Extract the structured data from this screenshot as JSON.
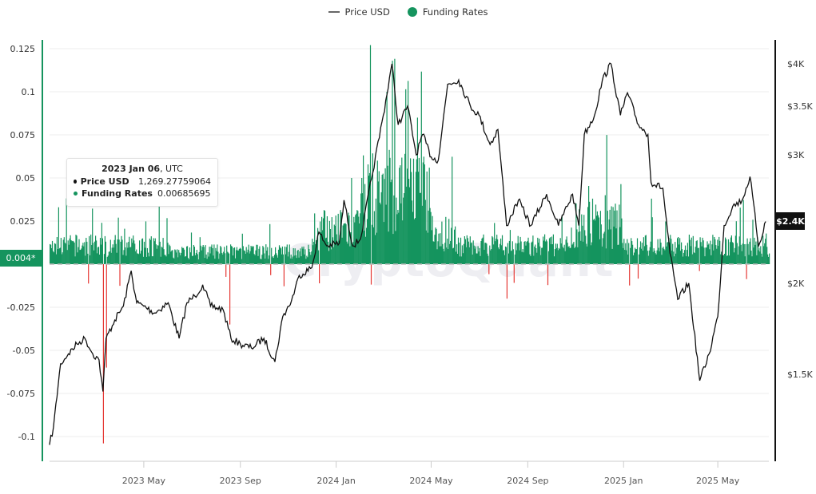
{
  "legend": {
    "items": [
      {
        "label": "Price USD",
        "type": "line",
        "color": "#666666"
      },
      {
        "label": "Funding Rates",
        "type": "dot",
        "color": "#15945e"
      }
    ]
  },
  "watermark": "CryptoQuant",
  "tooltip": {
    "date_bold": "2023 Jan 06",
    "date_suffix": ", UTC",
    "price_label": "Price USD",
    "price_value": "1,269.27759064",
    "funding_label": "Funding Rates",
    "funding_value": "0.00685695"
  },
  "badges": {
    "left": "0.004*",
    "right": "$2.4K"
  },
  "colors": {
    "positive": "#15945e",
    "negative": "#e53935",
    "price_line": "#111111",
    "left_axis": "#15945e",
    "right_axis": "#111111",
    "grid": "#eeeeee"
  },
  "chart_data": {
    "type": "line+bar",
    "title": "",
    "legend_position": "top",
    "grid": true,
    "xlabel": "",
    "x_ticks": [
      "2023 May",
      "2023 Sep",
      "2024 Jan",
      "2024 May",
      "2024 Sep",
      "2025 Jan",
      "2025 May"
    ],
    "x_range": [
      "2023 Jan 01",
      "2025 Jul"
    ],
    "left_axis": {
      "label": "Funding Rates",
      "ticks": [
        "0.125",
        "0.1",
        "0.075",
        "0.05",
        "0.025",
        "-0.025",
        "-0.05",
        "-0.075",
        "-0.1"
      ],
      "ylim": [
        -0.11,
        0.125
      ]
    },
    "right_axis": {
      "label": "Price USD",
      "scale": "log",
      "ticks": [
        "$4K",
        "$3.5K",
        "$3K",
        "$2K",
        "$1.5K"
      ],
      "ylim": [
        1150,
        4300
      ]
    },
    "series": [
      {
        "name": "Price USD",
        "type": "line",
        "points": [
          [
            "2023-01-01",
            1200
          ],
          [
            "2023-01-06",
            1269
          ],
          [
            "2023-01-15",
            1550
          ],
          [
            "2023-01-25",
            1600
          ],
          [
            "2023-02-05",
            1650
          ],
          [
            "2023-02-15",
            1680
          ],
          [
            "2023-02-25",
            1600
          ],
          [
            "2023-03-05",
            1570
          ],
          [
            "2023-03-10",
            1420
          ],
          [
            "2023-03-14",
            1680
          ],
          [
            "2023-03-25",
            1780
          ],
          [
            "2023-04-05",
            1860
          ],
          [
            "2023-04-15",
            2080
          ],
          [
            "2023-04-22",
            1880
          ],
          [
            "2023-05-01",
            1860
          ],
          [
            "2023-05-15",
            1820
          ],
          [
            "2023-06-01",
            1880
          ],
          [
            "2023-06-15",
            1680
          ],
          [
            "2023-06-25",
            1880
          ],
          [
            "2023-07-05",
            1920
          ],
          [
            "2023-07-15",
            1990
          ],
          [
            "2023-07-25",
            1860
          ],
          [
            "2023-08-10",
            1840
          ],
          [
            "2023-08-20",
            1680
          ],
          [
            "2023-09-01",
            1650
          ],
          [
            "2023-09-15",
            1630
          ],
          [
            "2023-10-01",
            1680
          ],
          [
            "2023-10-15",
            1560
          ],
          [
            "2023-10-25",
            1800
          ],
          [
            "2023-11-05",
            1890
          ],
          [
            "2023-11-15",
            2050
          ],
          [
            "2023-12-01",
            2100
          ],
          [
            "2023-12-10",
            2350
          ],
          [
            "2023-12-20",
            2250
          ],
          [
            "2024-01-05",
            2270
          ],
          [
            "2024-01-11",
            2600
          ],
          [
            "2024-01-22",
            2250
          ],
          [
            "2024-02-01",
            2300
          ],
          [
            "2024-02-15",
            2780
          ],
          [
            "2024-03-01",
            3400
          ],
          [
            "2024-03-12",
            4000
          ],
          [
            "2024-03-20",
            3300
          ],
          [
            "2024-04-01",
            3500
          ],
          [
            "2024-04-12",
            3000
          ],
          [
            "2024-04-20",
            3200
          ],
          [
            "2024-05-01",
            2980
          ],
          [
            "2024-05-10",
            2950
          ],
          [
            "2024-05-22",
            3750
          ],
          [
            "2024-06-05",
            3800
          ],
          [
            "2024-06-20",
            3500
          ],
          [
            "2024-07-01",
            3400
          ],
          [
            "2024-07-15",
            3100
          ],
          [
            "2024-07-25",
            3250
          ],
          [
            "2024-08-05",
            2400
          ],
          [
            "2024-08-20",
            2600
          ],
          [
            "2024-09-05",
            2400
          ],
          [
            "2024-09-25",
            2650
          ],
          [
            "2024-10-10",
            2400
          ],
          [
            "2024-10-28",
            2650
          ],
          [
            "2024-11-05",
            2400
          ],
          [
            "2024-11-12",
            3200
          ],
          [
            "2024-11-25",
            3400
          ],
          [
            "2024-12-05",
            3800
          ],
          [
            "2024-12-16",
            4000
          ],
          [
            "2024-12-28",
            3400
          ],
          [
            "2025-01-06",
            3650
          ],
          [
            "2025-01-20",
            3300
          ],
          [
            "2025-02-01",
            3200
          ],
          [
            "2025-02-05",
            2750
          ],
          [
            "2025-02-20",
            2700
          ],
          [
            "2025-03-01",
            2200
          ],
          [
            "2025-03-11",
            1900
          ],
          [
            "2025-03-25",
            2000
          ],
          [
            "2025-04-08",
            1470
          ],
          [
            "2025-04-20",
            1600
          ],
          [
            "2025-05-01",
            1800
          ],
          [
            "2025-05-09",
            2400
          ],
          [
            "2025-05-20",
            2550
          ],
          [
            "2025-06-01",
            2600
          ],
          [
            "2025-06-11",
            2800
          ],
          [
            "2025-06-22",
            2250
          ],
          [
            "2025-07-01",
            2430
          ]
        ]
      },
      {
        "name": "Funding Rates",
        "type": "bar",
        "note": "daily bars; mostly 0.004-0.02, spikes to ~0.12 in Mar 2024, negative spikes to -0.1 in Mar 2023",
        "notable_values": [
          [
            "2023-01-06",
            0.00685695
          ],
          [
            "2023-01-12",
            0.033
          ],
          [
            "2023-03-10",
            -0.104
          ],
          [
            "2023-03-14",
            -0.06
          ],
          [
            "2023-08-18",
            -0.035
          ],
          [
            "2024-01-20",
            0.05
          ],
          [
            "2024-03-05",
            0.1
          ],
          [
            "2024-03-12",
            0.118
          ],
          [
            "2024-04-13",
            0.085
          ],
          [
            "2024-08-05",
            -0.02
          ],
          [
            "2024-11-22",
            0.038
          ],
          [
            "2024-12-08",
            0.04
          ],
          [
            "2025-04-07",
            -0.004
          ]
        ]
      }
    ]
  }
}
